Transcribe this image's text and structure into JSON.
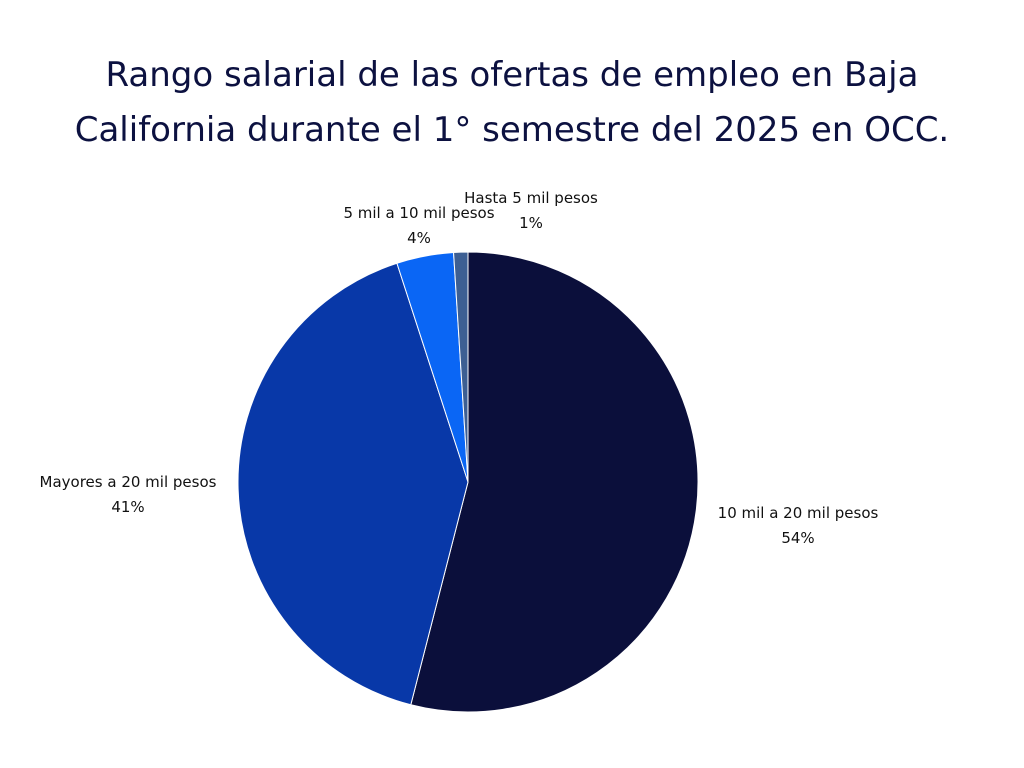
{
  "chart_data": {
    "type": "pie",
    "title_lines": [
      "Rango salarial de las ofertas de empleo en Baja",
      "California durante el 1° semestre del 2025 en OCC."
    ],
    "slices": [
      {
        "label": "10 mil a 20 mil pesos",
        "value": 54,
        "value_label": "54%",
        "color": "#0b0f3b"
      },
      {
        "label": "Mayores a 20 mil pesos",
        "value": 41,
        "value_label": "41%",
        "color": "#0838a8"
      },
      {
        "label": "5 mil a 10 mil pesos",
        "value": 4,
        "value_label": "4%",
        "color": "#0a66f5"
      },
      {
        "label": "Hasta 5 mil pesos",
        "value": 1,
        "value_label": "1%",
        "color": "#3d5f93"
      }
    ],
    "start_angle": "12 o'clock",
    "direction": "clockwise"
  }
}
